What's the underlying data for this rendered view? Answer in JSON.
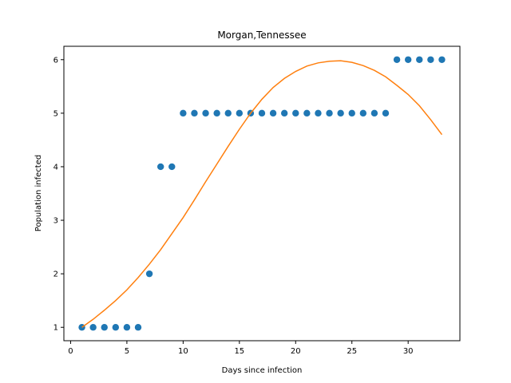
{
  "chart_data": {
    "type": "scatter",
    "title": "Morgan,Tennessee",
    "xlabel": "Days since infection",
    "ylabel": "Population infected",
    "xlim": [
      -0.6,
      34.6
    ],
    "ylim": [
      0.75,
      6.25
    ],
    "xticks": [
      0,
      5,
      10,
      15,
      20,
      25,
      30
    ],
    "yticks": [
      1,
      2,
      3,
      4,
      5,
      6
    ],
    "grid": false,
    "series": [
      {
        "kind": "scatter",
        "color": "#1f77b4",
        "x": [
          1,
          2,
          3,
          4,
          5,
          6,
          7,
          8,
          9,
          10,
          11,
          12,
          13,
          14,
          15,
          16,
          17,
          18,
          19,
          20,
          21,
          22,
          23,
          24,
          25,
          26,
          27,
          28,
          29,
          30,
          31,
          32,
          33
        ],
        "y": [
          1,
          1,
          1,
          1,
          1,
          1,
          2,
          4,
          4,
          5,
          5,
          5,
          5,
          5,
          5,
          5,
          5,
          5,
          5,
          5,
          5,
          5,
          5,
          5,
          5,
          5,
          5,
          5,
          6,
          6,
          6,
          6,
          6
        ]
      },
      {
        "kind": "line",
        "color": "#ff7f0e",
        "x": [
          1,
          2,
          3,
          4,
          5,
          6,
          7,
          8,
          9,
          10,
          11,
          12,
          13,
          14,
          15,
          16,
          17,
          18,
          19,
          20,
          21,
          22,
          23,
          24,
          25,
          26,
          27,
          28,
          29,
          30,
          31,
          32,
          33
        ],
        "y": [
          1.0,
          1.15,
          1.32,
          1.5,
          1.7,
          1.93,
          2.18,
          2.45,
          2.75,
          3.05,
          3.38,
          3.72,
          4.05,
          4.38,
          4.7,
          5.0,
          5.26,
          5.48,
          5.65,
          5.78,
          5.88,
          5.94,
          5.97,
          5.98,
          5.95,
          5.89,
          5.8,
          5.68,
          5.52,
          5.35,
          5.14,
          4.88,
          4.6
        ]
      }
    ]
  }
}
